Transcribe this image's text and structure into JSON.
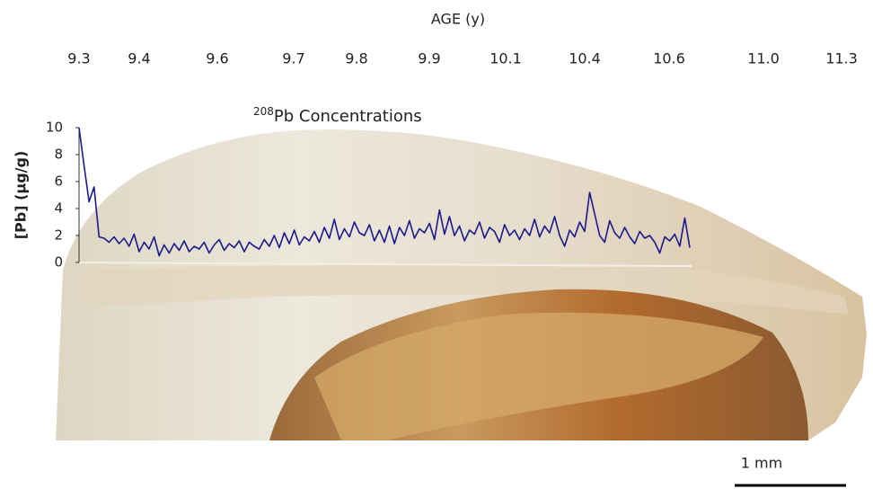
{
  "chart_data": {
    "type": "line",
    "top_axis_title": "AGE (y)",
    "age_labels": [
      "9.3",
      "9.4",
      "9.6",
      "9.7",
      "9.8",
      "9.9",
      "10.1",
      "10.4",
      "10.6",
      "11.0",
      "11.3"
    ],
    "title_superscript": "208",
    "title": "Pb Concentrations",
    "ylabel": "[Pb] (µg/g)",
    "ylim": [
      0,
      10
    ],
    "yticks": [
      0,
      2,
      4,
      6,
      8,
      10
    ],
    "color": "#1a1a8c",
    "values": [
      10,
      7.2,
      4.5,
      5.6,
      1.9,
      1.8,
      1.5,
      1.9,
      1.4,
      1.8,
      1.2,
      2.1,
      0.8,
      1.5,
      1.0,
      1.9,
      0.5,
      1.3,
      0.7,
      1.4,
      0.9,
      1.6,
      0.8,
      1.2,
      1.0,
      1.5,
      0.7,
      1.3,
      1.7,
      0.9,
      1.4,
      1.1,
      1.6,
      0.8,
      1.5,
      1.2,
      1.0,
      1.7,
      1.2,
      2.0,
      1.1,
      2.2,
      1.4,
      2.4,
      1.3,
      1.9,
      1.6,
      2.3,
      1.5,
      2.6,
      1.8,
      3.2,
      1.7,
      2.5,
      1.9,
      3.0,
      2.2,
      2.0,
      2.8,
      1.6,
      2.4,
      1.5,
      2.7,
      1.4,
      2.6,
      2.0,
      3.1,
      1.8,
      2.5,
      2.2,
      2.9,
      1.7,
      3.9,
      2.1,
      3.4,
      2.0,
      2.7,
      1.6,
      2.4,
      2.1,
      3.0,
      1.8,
      2.6,
      2.3,
      1.5,
      2.8,
      2.0,
      2.4,
      1.7,
      2.5,
      2.0,
      3.2,
      1.9,
      2.7,
      2.2,
      3.4,
      2.0,
      1.2,
      2.4,
      1.9,
      3.0,
      2.3,
      5.2,
      3.6,
      2.0,
      1.5,
      3.1,
      2.2,
      1.8,
      2.6,
      1.9,
      1.4,
      2.3,
      1.8,
      2.0,
      1.5,
      0.7,
      1.9,
      1.6,
      2.1,
      1.2,
      3.3,
      1.1
    ],
    "scale_bar_label": "1 mm"
  }
}
